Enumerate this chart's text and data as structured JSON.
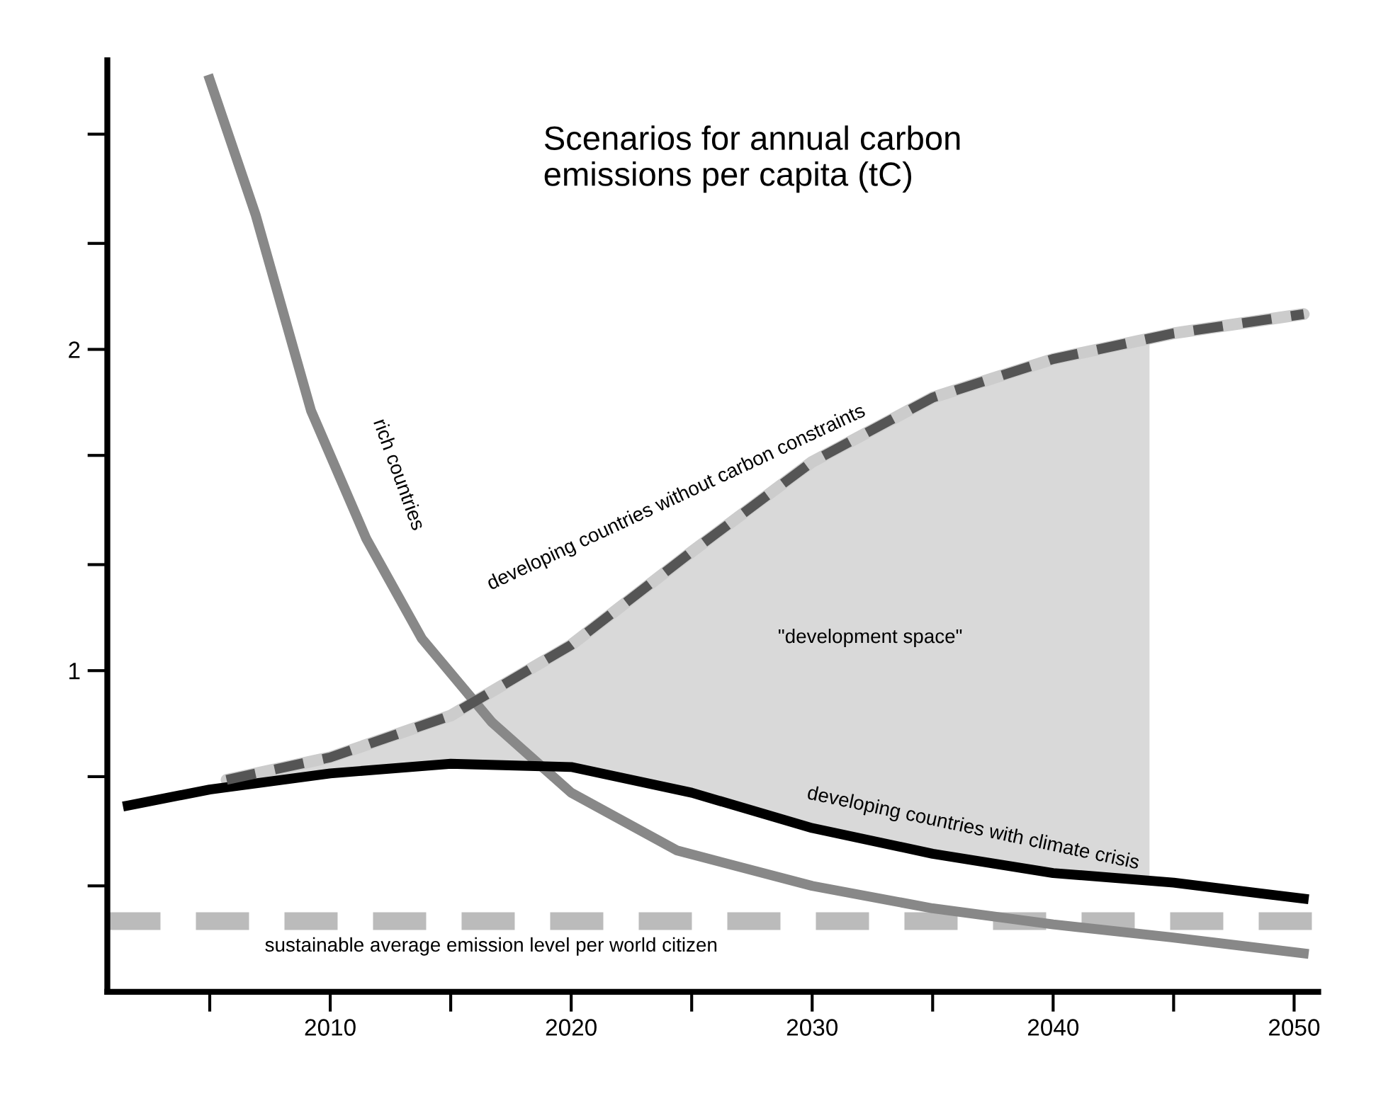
{
  "chart_data": {
    "type": "line",
    "title": "Scenarios for annual carbon\nemissions per capita (tC)",
    "xlim": [
      2000.75,
      2051
    ],
    "ylim": [
      0,
      2.9
    ],
    "xticks": [
      {
        "value": 2005,
        "label": null
      },
      2010,
      {
        "value": 2015,
        "label": null
      },
      2020,
      {
        "value": 2025,
        "label": null
      },
      2030,
      {
        "value": 2035,
        "label": null
      },
      2040,
      {
        "value": 2045,
        "label": null
      },
      2050
    ],
    "yticks": [
      {
        "value": 0.33,
        "label": null
      },
      {
        "value": 0.67,
        "label": null
      },
      1,
      {
        "value": 1.33,
        "label": null
      },
      {
        "value": 1.67,
        "label": null
      },
      2,
      {
        "value": 2.33,
        "label": null
      },
      {
        "value": 2.67,
        "label": null
      }
    ],
    "grid": false,
    "legend": false,
    "series": [
      {
        "color": "#888888",
        "line_style": "solid",
        "x": [
          2005,
          2006.9,
          2009.2,
          2011.5,
          2013.8,
          2016.7,
          2020,
          2024.4,
          2030,
          2035,
          2040,
          2044.9,
          2050.4
        ],
        "values": [
          2.84,
          2.42,
          1.81,
          1.41,
          1.1,
          0.84,
          0.62,
          0.44,
          0.33,
          0.26,
          0.21,
          0.17,
          0.12
        ]
      },
      {
        "color": "#000000",
        "line_style": "solid",
        "x": [
          2001.6,
          2005,
          2010,
          2015,
          2020,
          2025,
          2030,
          2035,
          2040,
          2045,
          2050.4
        ],
        "values": [
          0.58,
          0.63,
          0.68,
          0.71,
          0.7,
          0.62,
          0.51,
          0.43,
          0.37,
          0.34,
          0.29
        ]
      },
      {
        "color": "#555555",
        "line_style": "dashed",
        "x": [
          2005.7,
          2010,
          2015,
          2020,
          2025,
          2030,
          2035,
          2040,
          2045,
          2050.4
        ],
        "values": [
          0.66,
          0.73,
          0.86,
          1.08,
          1.37,
          1.65,
          1.85,
          1.97,
          2.05,
          2.11
        ]
      }
    ],
    "ref_lines": [
      {
        "axis": "y",
        "value": 0.22,
        "label": "sustainable average emission level per world citizen",
        "color": "#bbbbbb",
        "line_style": "dashed"
      }
    ],
    "annotations": [
      "rich countries",
      "developing countries without carbon constraints",
      "developing countries with climate crisis",
      "\"development space\""
    ]
  }
}
